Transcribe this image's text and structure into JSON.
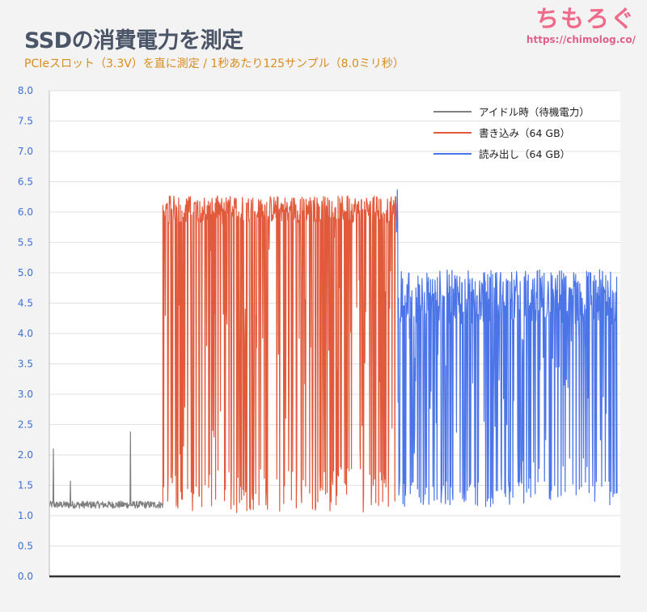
{
  "title": "SSDの消費電力を測定",
  "subtitle": "PCIeスロット（3.3V）を直に測定 / 1秒あたり125サンプル（8.0ミリ秒）",
  "brand": {
    "name": "ちもろぐ",
    "url": "https://chimolog.co/"
  },
  "chart_data": {
    "type": "line",
    "title": "SSDの消費電力を測定",
    "xlabel": "",
    "ylabel": "",
    "ylim": [
      0,
      8
    ],
    "yticks": [
      "0.0",
      "0.5",
      "1.0",
      "1.5",
      "2.0",
      "2.5",
      "3.0",
      "3.5",
      "4.0",
      "4.5",
      "5.0",
      "5.5",
      "6.0",
      "6.5",
      "7.0",
      "7.5",
      "8.0"
    ],
    "grid": "horizontal",
    "legend_position": "top-right",
    "series": [
      {
        "name": "アイドル時（待機電力）",
        "color": "#7f7f7f",
        "x_range": [
          0,
          140
        ],
        "baseline": 1.18,
        "jitter": 0.06,
        "spikes": [
          [
            5,
            2.1
          ],
          [
            26,
            1.57
          ],
          [
            100,
            2.38
          ]
        ]
      },
      {
        "name": "書き込み（64 GB）",
        "color": "#e15a3c",
        "x_range": [
          140,
          428
        ],
        "high": 6.05,
        "high_jitter": 0.22,
        "low_range": [
          1.05,
          5.9
        ],
        "dropout_share": 0.3
      },
      {
        "name": "読み出し（64 GB）",
        "color": "#4a74e8",
        "x_range": [
          428,
          700
        ],
        "initial_peak": 6.42,
        "high": 4.6,
        "high_jitter": 0.45,
        "low_range": [
          1.15,
          4.0
        ],
        "dropout_share": 0.35
      }
    ]
  }
}
